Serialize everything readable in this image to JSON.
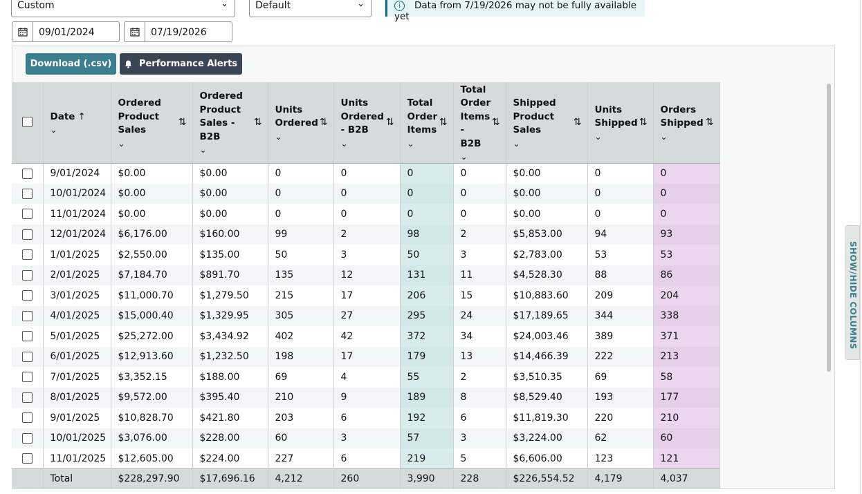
{
  "filters": {
    "range_select": "Custom",
    "view_select": "Default",
    "notice": "Data from 7/19/2026 may not be fully available yet",
    "start_date": "09/01/2024",
    "end_date": "07/19/2026"
  },
  "toolbar": {
    "download_label": "Download (.csv)",
    "alerts_label": "Performance Alerts"
  },
  "side_tab": "SHOW/HIDE COLUMNS",
  "columns": [
    {
      "label": "Date"
    },
    {
      "label": "Ordered Product Sales"
    },
    {
      "label": "Ordered Product Sales - B2B"
    },
    {
      "label": "Units Ordered"
    },
    {
      "label": "Units Ordered - B2B"
    },
    {
      "label": "Total Order Items"
    },
    {
      "label": "Total Order Items - B2B"
    },
    {
      "label": "Shipped Product Sales"
    },
    {
      "label": "Units Shipped"
    },
    {
      "label": "Orders Shipped"
    }
  ],
  "rows": [
    [
      "9/01/2024",
      "$0.00",
      "$0.00",
      "0",
      "0",
      "0",
      "0",
      "$0.00",
      "0",
      "0"
    ],
    [
      "10/01/2024",
      "$0.00",
      "$0.00",
      "0",
      "0",
      "0",
      "0",
      "$0.00",
      "0",
      "0"
    ],
    [
      "11/01/2024",
      "$0.00",
      "$0.00",
      "0",
      "0",
      "0",
      "0",
      "$0.00",
      "0",
      "0"
    ],
    [
      "12/01/2024",
      "$6,176.00",
      "$160.00",
      "99",
      "2",
      "98",
      "2",
      "$5,853.00",
      "94",
      "93"
    ],
    [
      "1/01/2025",
      "$2,550.00",
      "$135.00",
      "50",
      "3",
      "50",
      "3",
      "$2,783.00",
      "53",
      "53"
    ],
    [
      "2/01/2025",
      "$7,184.70",
      "$891.70",
      "135",
      "12",
      "131",
      "11",
      "$4,528.30",
      "88",
      "86"
    ],
    [
      "3/01/2025",
      "$11,000.70",
      "$1,279.50",
      "215",
      "17",
      "206",
      "15",
      "$10,883.60",
      "209",
      "204"
    ],
    [
      "4/01/2025",
      "$15,000.40",
      "$1,329.95",
      "305",
      "27",
      "295",
      "24",
      "$17,189.65",
      "344",
      "338"
    ],
    [
      "5/01/2025",
      "$25,272.00",
      "$3,434.92",
      "402",
      "42",
      "372",
      "34",
      "$24,003.46",
      "389",
      "371"
    ],
    [
      "6/01/2025",
      "$12,913.60",
      "$1,232.50",
      "198",
      "17",
      "179",
      "13",
      "$14,466.39",
      "222",
      "213"
    ],
    [
      "7/01/2025",
      "$3,352.15",
      "$188.00",
      "69",
      "4",
      "55",
      "2",
      "$3,510.35",
      "69",
      "58"
    ],
    [
      "8/01/2025",
      "$9,572.00",
      "$395.40",
      "210",
      "9",
      "189",
      "8",
      "$8,529.40",
      "193",
      "177"
    ],
    [
      "9/01/2025",
      "$10,828.70",
      "$421.80",
      "203",
      "6",
      "192",
      "6",
      "$11,819.30",
      "220",
      "210"
    ],
    [
      "10/01/2025",
      "$3,076.00",
      "$228.00",
      "60",
      "3",
      "57",
      "3",
      "$3,224.00",
      "62",
      "60"
    ],
    [
      "11/01/2025",
      "$12,605.00",
      "$224.00",
      "227",
      "6",
      "219",
      "5",
      "$6,606.00",
      "123",
      "121"
    ]
  ],
  "totals": [
    "Total",
    "$228,297.90",
    "$17,696.16",
    "4,212",
    "260",
    "3,990",
    "228",
    "$226,554.52",
    "4,179",
    "4,037"
  ],
  "colors": {
    "download_button": "#3b7e8e",
    "alerts_button": "#3a4553",
    "header_bg": "#d5dbdb",
    "highlight_teal": "#d8ecee",
    "highlight_purple": "#ecd6ee"
  }
}
